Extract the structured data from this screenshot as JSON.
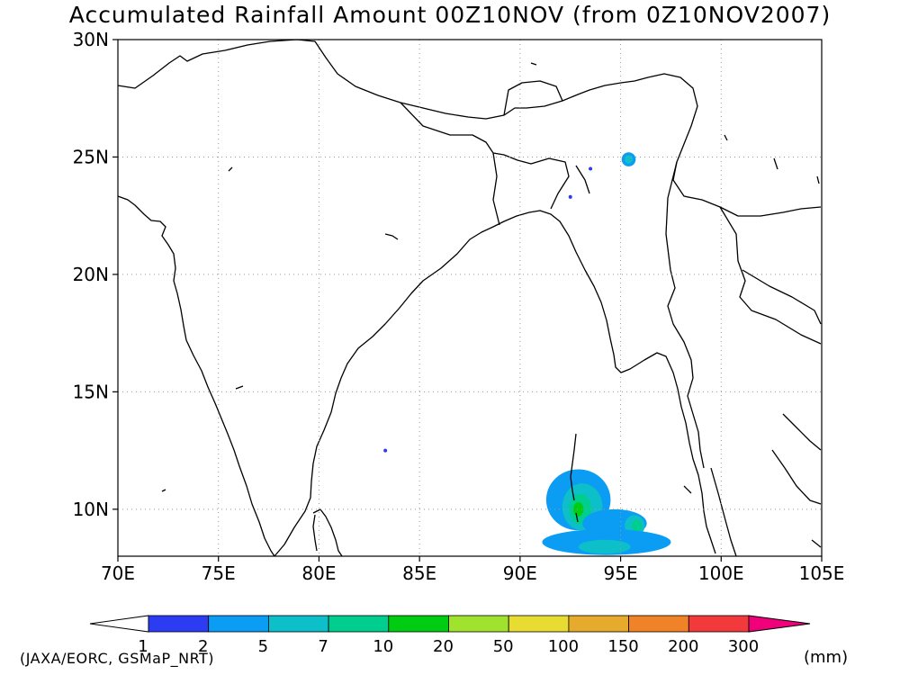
{
  "title": "Accumulated Rainfall Amount 00Z10NOV (from 0Z10NOV2007)",
  "credit": "(JAXA/EORC, GSMaP_NRT)",
  "units": "(mm)",
  "map": {
    "lat_range": [
      8,
      30
    ],
    "lon_range": [
      70,
      105
    ],
    "lat_ticks": [
      {
        "value": 10,
        "label": "10N"
      },
      {
        "value": 15,
        "label": "15N"
      },
      {
        "value": 20,
        "label": "20N"
      },
      {
        "value": 25,
        "label": "25N"
      },
      {
        "value": 30,
        "label": "30N"
      }
    ],
    "lon_ticks": [
      {
        "value": 70,
        "label": "70E"
      },
      {
        "value": 75,
        "label": "75E"
      },
      {
        "value": 80,
        "label": "80E"
      },
      {
        "value": 85,
        "label": "85E"
      },
      {
        "value": 90,
        "label": "90E"
      },
      {
        "value": 95,
        "label": "95E"
      },
      {
        "value": 100,
        "label": "100E"
      },
      {
        "value": 105,
        "label": "105E"
      }
    ],
    "gridlines": "dotted"
  },
  "colorbar": {
    "min_color": "#ffffff",
    "max_color": "#f0007a",
    "colors": [
      "#2b3cf2",
      "#0b9cf4",
      "#0dbfc8",
      "#00ce8e",
      "#00cc12",
      "#a0e22e",
      "#e8db32",
      "#e6aa2c",
      "#f08228",
      "#f23a3c"
    ],
    "labels": [
      "1",
      "2",
      "5",
      "7",
      "10",
      "20",
      "50",
      "100",
      "150",
      "200",
      "300"
    ]
  },
  "rain_areas": [
    {
      "lon": 92.9,
      "lat": 10.4,
      "rx_deg": 1.6,
      "ry_deg": 1.3,
      "level": 1
    },
    {
      "lon": 93.1,
      "lat": 10.1,
      "rx_deg": 1.0,
      "ry_deg": 1.0,
      "level": 2
    },
    {
      "lon": 93.0,
      "lat": 10.0,
      "rx_deg": 0.55,
      "ry_deg": 0.65,
      "level": 3
    },
    {
      "lon": 92.9,
      "lat": 10.0,
      "rx_deg": 0.25,
      "ry_deg": 0.3,
      "level": 4
    },
    {
      "lon": 94.7,
      "lat": 9.4,
      "rx_deg": 1.6,
      "ry_deg": 0.6,
      "level": 1
    },
    {
      "lon": 95.7,
      "lat": 9.3,
      "rx_deg": 0.5,
      "ry_deg": 0.45,
      "level": 2
    },
    {
      "lon": 95.8,
      "lat": 9.3,
      "rx_deg": 0.25,
      "ry_deg": 0.25,
      "level": 3
    },
    {
      "lon": 94.3,
      "lat": 8.6,
      "rx_deg": 3.2,
      "ry_deg": 0.55,
      "level": 1
    },
    {
      "lon": 94.2,
      "lat": 8.4,
      "rx_deg": 1.3,
      "ry_deg": 0.3,
      "level": 2
    },
    {
      "lon": 95.4,
      "lat": 24.9,
      "rx_deg": 0.35,
      "ry_deg": 0.3,
      "level": 1
    },
    {
      "lon": 95.4,
      "lat": 24.9,
      "rx_deg": 0.2,
      "ry_deg": 0.18,
      "level": 2
    },
    {
      "lon": 92.5,
      "lat": 23.3,
      "rx_deg": 0.08,
      "ry_deg": 0.08,
      "level": 0
    },
    {
      "lon": 93.5,
      "lat": 24.5,
      "rx_deg": 0.05,
      "ry_deg": 0.05,
      "level": 0
    },
    {
      "lon": 83.3,
      "lat": 12.5,
      "rx_deg": 0.06,
      "ry_deg": 0.06,
      "level": 0
    }
  ]
}
